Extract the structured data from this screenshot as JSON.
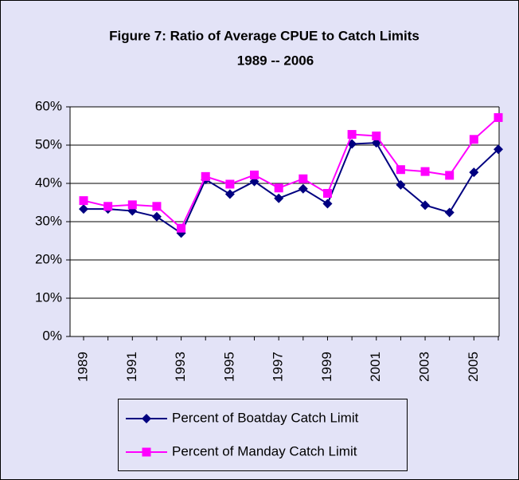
{
  "chart_data": {
    "type": "line",
    "title": "Figure 7: Ratio of Average CPUE to Catch Limits",
    "subtitle": "1989 -- 2006",
    "categories": [
      "1989",
      null,
      "1991",
      null,
      "1993",
      null,
      "1995",
      null,
      "1997",
      null,
      "1999",
      null,
      "2001",
      null,
      "2003",
      null,
      "2005",
      null
    ],
    "series": [
      {
        "name": "Percent of Boatday Catch Limit",
        "color": "#000080",
        "marker": "diamond",
        "values": [
          33.3,
          33.3,
          32.8,
          31.3,
          27.0,
          41.0,
          37.2,
          40.5,
          36.1,
          38.6,
          34.7,
          50.3,
          50.6,
          39.6,
          34.3,
          32.4,
          42.9,
          48.9
        ]
      },
      {
        "name": "Percent of Manday Catch Limit",
        "color": "#ff00ff",
        "marker": "square",
        "values": [
          35.5,
          34.0,
          34.4,
          34.0,
          28.3,
          41.8,
          39.8,
          42.2,
          38.8,
          41.2,
          37.4,
          52.8,
          52.4,
          43.6,
          43.1,
          42.1,
          51.5,
          57.2
        ]
      }
    ],
    "ylim": [
      0,
      60
    ],
    "yticks": [
      {
        "value": 0,
        "label": "0%"
      },
      {
        "value": 10,
        "label": "10%"
      },
      {
        "value": 20,
        "label": "20%"
      },
      {
        "value": 30,
        "label": "30%"
      },
      {
        "value": 40,
        "label": "40%"
      },
      {
        "value": 50,
        "label": "50%"
      },
      {
        "value": 60,
        "label": "60%"
      }
    ],
    "grid": true,
    "legend": "bottom"
  }
}
